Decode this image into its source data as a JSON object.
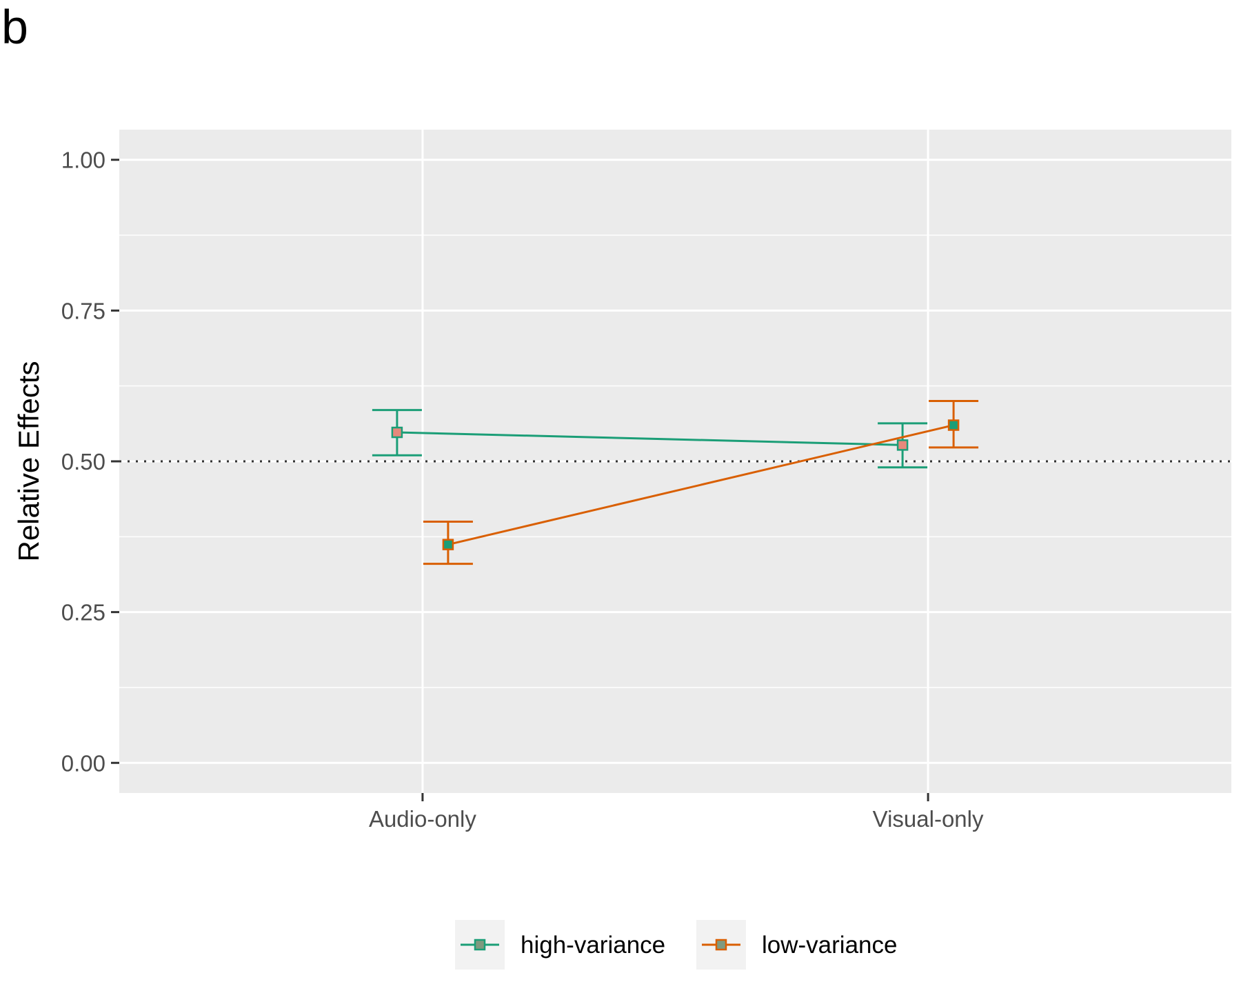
{
  "panel_label": "b",
  "chart_data": {
    "type": "line",
    "title": "",
    "xlabel": "",
    "ylabel": "Relative Effects",
    "categories": [
      "Audio-only",
      "Visual-only"
    ],
    "ylim": [
      -0.05,
      1.05
    ],
    "yticks": [
      "0.00",
      "0.25",
      "0.50",
      "0.75",
      "1.00"
    ],
    "reference_line": 0.5,
    "grid": true,
    "legend_position": "bottom",
    "series": [
      {
        "name": "high-variance",
        "color": "#1b9e77",
        "marker_fill": "#e7897c",
        "values": [
          0.548,
          0.527
        ],
        "lower": [
          0.51,
          0.49
        ],
        "upper": [
          0.585,
          0.563
        ]
      },
      {
        "name": "low-variance",
        "color": "#d95f02",
        "marker_fill": "#1b9e77",
        "values": [
          0.362,
          0.56
        ],
        "lower": [
          0.33,
          0.523
        ],
        "upper": [
          0.4,
          0.6
        ]
      }
    ]
  }
}
